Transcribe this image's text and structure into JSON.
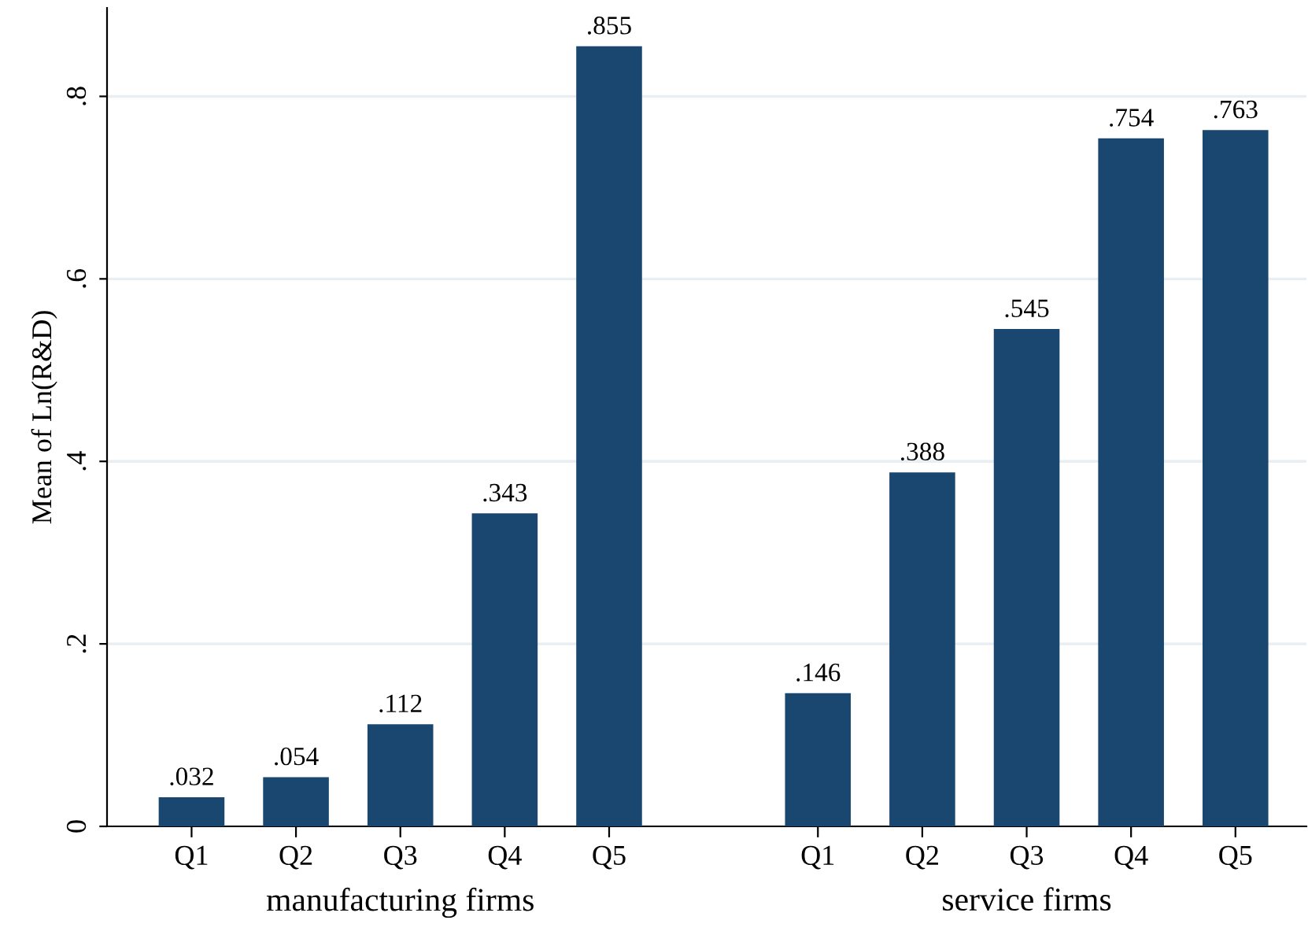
{
  "chart_data": {
    "type": "bar",
    "ylabel": "Mean of Ln(R&D)",
    "categories": [
      "Q1",
      "Q2",
      "Q3",
      "Q4",
      "Q5",
      null,
      "Q1",
      "Q2",
      "Q3",
      "Q4",
      "Q5"
    ],
    "values": [
      0.032,
      0.054,
      0.112,
      0.343,
      0.855,
      null,
      0.146,
      0.388,
      0.545,
      0.754,
      0.763
    ],
    "value_labels": [
      ".032",
      ".054",
      ".112",
      ".343",
      ".855",
      null,
      ".146",
      ".388",
      ".545",
      ".754",
      ".763"
    ],
    "color": "#1a476f",
    "ylim": [
      0,
      0.897
    ],
    "yticks": [
      0,
      {
        "value": 0.2,
        "label": ".2"
      },
      {
        "value": 0.4,
        "label": ".4"
      },
      {
        "value": 0.6,
        "label": ".6"
      },
      {
        "value": 0.8,
        "label": ".8"
      }
    ],
    "grid": "y",
    "annotations": [
      "manufacturing firms",
      "service firms"
    ]
  }
}
